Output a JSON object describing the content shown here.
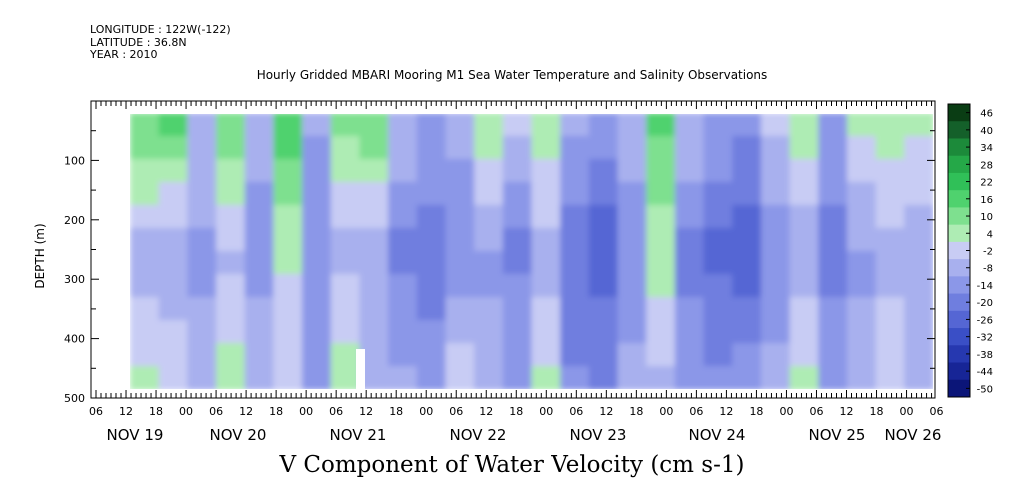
{
  "header": {
    "longitude": "LONGITUDE : 122W(-122)",
    "latitude": "LATITUDE : 36.8N",
    "year": "YEAR : 2010"
  },
  "chart_data": {
    "type": "heatmap",
    "title": "Hourly Gridded MBARI Mooring M1 Sea Water Temperature and Salinity Observations",
    "xlabel": "V Component of Water Velocity (cm s-1)",
    "ylabel": "DEPTH (m)",
    "ylim": [
      0,
      500
    ],
    "depth_range_data": [
      20,
      485
    ],
    "y_ticks": [
      100,
      200,
      300,
      400,
      500
    ],
    "x_tick_labels": [
      "06",
      "12",
      "18",
      "00",
      "06",
      "12",
      "18",
      "00",
      "06",
      "12",
      "18",
      "00",
      "06",
      "12",
      "18",
      "00",
      "06",
      "12",
      "18",
      "00",
      "06",
      "12",
      "18",
      "00",
      "06",
      "12",
      "18",
      "00",
      "06"
    ],
    "date_labels": [
      "NOV 19",
      "NOV 20",
      "NOV 21",
      "NOV 22",
      "NOV 23",
      "NOV 24",
      "NOV 25",
      "NOV 26"
    ],
    "colorbar": {
      "labels": [
        "46",
        "40",
        "34",
        "28",
        "22",
        "16",
        "10",
        "4",
        "-2",
        "-8",
        "-14",
        "-20",
        "-26",
        "-32",
        "-38",
        "-44",
        "-50"
      ],
      "min": -50,
      "max": 50,
      "colors": [
        "#0a3d14",
        "#14602a",
        "#1c8a3a",
        "#25a848",
        "#30c058",
        "#4fd26e",
        "#7ee08f",
        "#aeecb4",
        "#c8ccf4",
        "#a8b0ee",
        "#8b97e8",
        "#6f7edf",
        "#5566d4",
        "#3a4fc6",
        "#2638b0",
        "#172596",
        "#0b1578"
      ]
    },
    "velocity_columns": [
      {
        "time": "NOV 19 12",
        "top": 14,
        "mid": -6,
        "bottom": 4
      },
      {
        "time": "NOV 19 18",
        "top": 16,
        "mid": -8,
        "bottom": 2
      },
      {
        "time": "NOV 20 00",
        "top": -4,
        "mid": -10,
        "bottom": -6
      },
      {
        "time": "NOV 20 06",
        "top": 12,
        "mid": -4,
        "bottom": 6
      },
      {
        "time": "NOV 20 12",
        "top": -6,
        "mid": -12,
        "bottom": -4
      },
      {
        "time": "NOV 20 18",
        "top": 18,
        "mid": 4,
        "bottom": -2
      },
      {
        "time": "NOV 21 00",
        "top": -8,
        "mid": -14,
        "bottom": -10
      },
      {
        "time": "NOV 21 06",
        "top": 10,
        "mid": -6,
        "bottom": 8
      },
      {
        "time": "NOV 21 12",
        "top": 14,
        "mid": -8,
        "bottom": -4
      },
      {
        "time": "NOV 21 18",
        "top": -4,
        "mid": -16,
        "bottom": -8
      },
      {
        "time": "NOV 22 00",
        "top": -10,
        "mid": -18,
        "bottom": -12
      },
      {
        "time": "NOV 22 06",
        "top": -6,
        "mid": -14,
        "bottom": 2
      },
      {
        "time": "NOV 22 12",
        "top": 6,
        "mid": -10,
        "bottom": -6
      },
      {
        "time": "NOV 22 18",
        "top": -2,
        "mid": -16,
        "bottom": -10
      },
      {
        "time": "NOV 23 00",
        "top": 8,
        "mid": -6,
        "bottom": 4
      },
      {
        "time": "NOV 23 06",
        "top": -8,
        "mid": -20,
        "bottom": -14
      },
      {
        "time": "NOV 23 12",
        "top": -12,
        "mid": -24,
        "bottom": -16
      },
      {
        "time": "NOV 23 18",
        "top": -6,
        "mid": -12,
        "bottom": -8
      },
      {
        "time": "NOV 24 00",
        "top": 16,
        "mid": 6,
        "bottom": -4
      },
      {
        "time": "NOV 24 06",
        "top": -4,
        "mid": -16,
        "bottom": -12
      },
      {
        "time": "NOV 24 12",
        "top": -10,
        "mid": -22,
        "bottom": -14
      },
      {
        "time": "NOV 24 18",
        "top": -14,
        "mid": -26,
        "bottom": -12
      },
      {
        "time": "NOV 25 00",
        "top": -2,
        "mid": -12,
        "bottom": -8
      },
      {
        "time": "NOV 25 06",
        "top": 6,
        "mid": -8,
        "bottom": 4
      },
      {
        "time": "NOV 25 12",
        "top": -10,
        "mid": -18,
        "bottom": -10
      },
      {
        "time": "NOV 25 18",
        "top": 4,
        "mid": -10,
        "bottom": -6
      },
      {
        "time": "NOV 26 00",
        "top": 8,
        "mid": -6,
        "bottom": 2
      },
      {
        "time": "NOV 26 06",
        "top": 4,
        "mid": -8,
        "bottom": -4
      }
    ]
  }
}
